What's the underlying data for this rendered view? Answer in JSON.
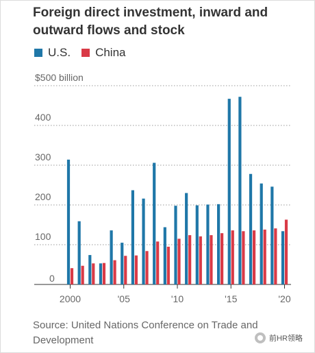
{
  "title": "Foreign direct investment, inward and outward flows and stock",
  "legend": [
    {
      "label": "U.S.",
      "color": "#1f77a8"
    },
    {
      "label": "China",
      "color": "#d93a46"
    }
  ],
  "source": "Source: United Nations Conference on Trade and Development",
  "watermark": "前HR领略",
  "chart_data": {
    "type": "bar",
    "categories": [
      "2000",
      "2001",
      "2002",
      "2003",
      "2004",
      "2005",
      "2006",
      "2007",
      "2008",
      "2009",
      "2010",
      "2011",
      "2012",
      "2013",
      "2014",
      "2015",
      "2016",
      "2017",
      "2018",
      "2019",
      "2020"
    ],
    "series": [
      {
        "name": "U.S.",
        "color": "#1f77a8",
        "values": [
          314,
          159,
          74,
          53,
          136,
          105,
          237,
          216,
          306,
          144,
          198,
          230,
          199,
          201,
          202,
          467,
          472,
          278,
          254,
          246,
          134
        ]
      },
      {
        "name": "China",
        "color": "#d93a46",
        "values": [
          41,
          47,
          53,
          54,
          61,
          72,
          73,
          84,
          108,
          95,
          115,
          124,
          121,
          124,
          129,
          136,
          134,
          136,
          138,
          141,
          163
        ]
      }
    ],
    "ylim": [
      0,
      500
    ],
    "yticks": [
      0,
      100,
      200,
      300,
      400,
      500
    ],
    "ytick_labels": [
      "0",
      "100",
      "200",
      "300",
      "400",
      "$500 billion"
    ],
    "xtick_labels": [
      {
        "index": 0,
        "label": "2000"
      },
      {
        "index": 5,
        "label": "'05"
      },
      {
        "index": 10,
        "label": "'10"
      },
      {
        "index": 15,
        "label": "'15"
      },
      {
        "index": 20,
        "label": "'20"
      }
    ],
    "grid": "horizontal dotted",
    "legend_position": "top-left"
  }
}
